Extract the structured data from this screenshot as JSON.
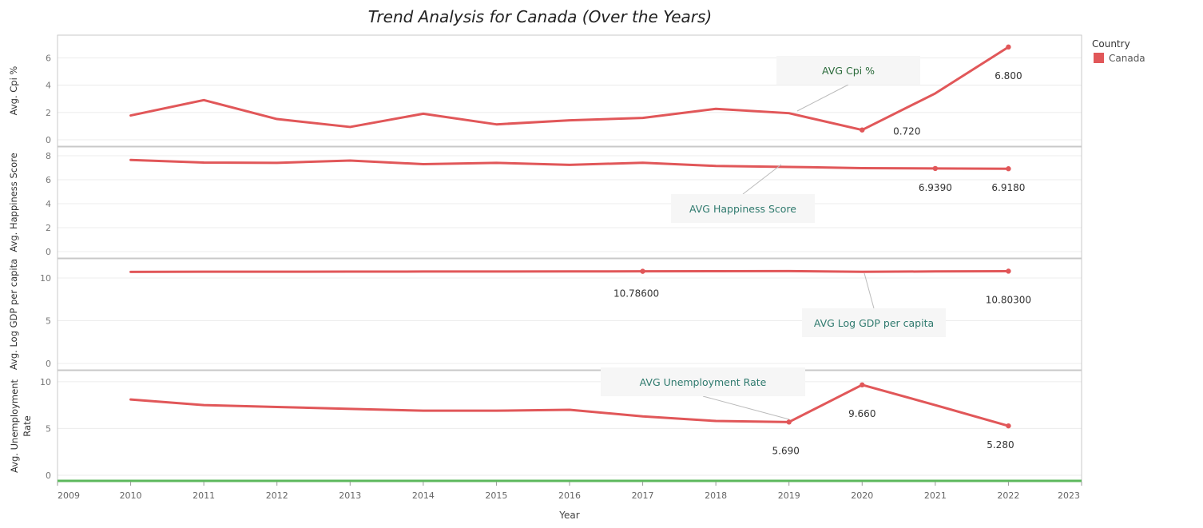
{
  "chart_data": {
    "type": "line",
    "title": "Trend Analysis for Canada (Over the Years)",
    "xlabel": "Year",
    "x_ticks": [
      2009,
      2010,
      2011,
      2012,
      2013,
      2014,
      2015,
      2016,
      2017,
      2018,
      2019,
      2020,
      2021,
      2022,
      2023
    ],
    "xlim": [
      2009,
      2023
    ],
    "legend": {
      "title": "Country",
      "placement": "top-right",
      "items": [
        {
          "name": "Canada",
          "color": "#e15759"
        }
      ]
    },
    "panels": [
      {
        "ylabel": "Avg. Cpi %",
        "ylim": [
          0,
          7.2
        ],
        "yticks": [
          0,
          2,
          4,
          6
        ],
        "x": [
          2010,
          2011,
          2012,
          2013,
          2014,
          2015,
          2016,
          2017,
          2018,
          2019,
          2020,
          2021,
          2022
        ],
        "values": [
          1.78,
          2.91,
          1.52,
          0.94,
          1.91,
          1.13,
          1.43,
          1.6,
          2.27,
          1.95,
          0.72,
          3.4,
          6.8
        ],
        "data_labels": [
          {
            "x": 2020,
            "text": "0.720"
          },
          {
            "x": 2022,
            "text": "6.800"
          }
        ],
        "annotation": "AVG Cpi %"
      },
      {
        "ylabel": "Avg. Happiness Score",
        "ylim": [
          0,
          8.2
        ],
        "yticks": [
          0,
          2,
          4,
          6,
          8
        ],
        "x": [
          2010,
          2011,
          2012,
          2013,
          2014,
          2015,
          2016,
          2017,
          2018,
          2019,
          2020,
          2021,
          2022
        ],
        "values": [
          7.65,
          7.43,
          7.41,
          7.6,
          7.3,
          7.41,
          7.24,
          7.42,
          7.15,
          7.07,
          6.97,
          6.939,
          6.918
        ],
        "data_labels": [
          {
            "x": 2021,
            "text": "6.9390"
          },
          {
            "x": 2022,
            "text": "6.9180"
          }
        ],
        "annotation": "AVG Happiness Score"
      },
      {
        "ylabel": "Avg. Log GDP per capita",
        "ylim": [
          0,
          11.5
        ],
        "yticks": [
          0,
          5,
          10
        ],
        "x": [
          2010,
          2011,
          2012,
          2013,
          2014,
          2015,
          2016,
          2017,
          2018,
          2019,
          2020,
          2021,
          2022
        ],
        "values": [
          10.72,
          10.74,
          10.74,
          10.75,
          10.76,
          10.76,
          10.77,
          10.786,
          10.8,
          10.81,
          10.73,
          10.77,
          10.803
        ],
        "data_labels": [
          {
            "x": 2017,
            "text": "10.78600"
          },
          {
            "x": 2022,
            "text": "10.80300"
          }
        ],
        "annotation": "AVG Log GDP per capita"
      },
      {
        "ylabel": "Avg. Unemployment Rate",
        "ylim": [
          0,
          10.5
        ],
        "yticks": [
          0,
          5,
          10
        ],
        "x": [
          2010,
          2011,
          2012,
          2013,
          2014,
          2015,
          2016,
          2017,
          2018,
          2019,
          2020,
          2021,
          2022
        ],
        "values": [
          8.1,
          7.5,
          7.3,
          7.1,
          6.9,
          6.9,
          7.0,
          6.3,
          5.8,
          5.69,
          9.66,
          7.5,
          5.28
        ],
        "data_labels": [
          {
            "x": 2019,
            "text": "5.690"
          },
          {
            "x": 2020,
            "text": "9.660"
          },
          {
            "x": 2022,
            "text": "5.280"
          }
        ],
        "annotation": "AVG Unemployment Rate"
      }
    ]
  }
}
